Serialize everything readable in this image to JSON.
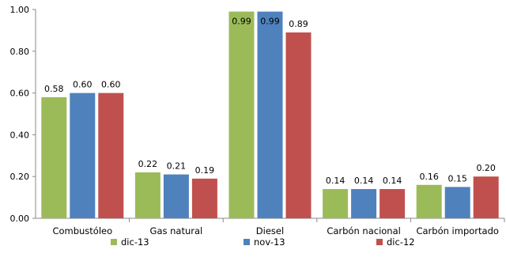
{
  "chart_data": {
    "type": "bar",
    "categories": [
      "Combustóleo",
      "Gas natural",
      "Diesel",
      "Carbón nacional",
      "Carbón importado"
    ],
    "series": [
      {
        "name": "dic-13",
        "color": "#9bbb59",
        "values": [
          0.58,
          0.22,
          0.99,
          0.14,
          0.16
        ],
        "labels": [
          "0.58",
          "0.22",
          "0.99",
          "0.14",
          "0.16"
        ]
      },
      {
        "name": "nov-13",
        "color": "#4f81bd",
        "values": [
          0.6,
          0.21,
          0.99,
          0.14,
          0.15
        ],
        "labels": [
          "0.60",
          "0.21",
          "0.99",
          "0.14",
          "0.15"
        ]
      },
      {
        "name": "dic-12",
        "color": "#c0504d",
        "values": [
          0.6,
          0.19,
          0.89,
          0.14,
          0.2
        ],
        "labels": [
          "0.60",
          "0.19",
          "0.89",
          "0.14",
          "0.20"
        ]
      }
    ],
    "ylim": [
      0,
      1
    ],
    "yticks": [
      "0.00",
      "0.20",
      "0.40",
      "0.60",
      "0.80",
      "1.00"
    ],
    "title": "",
    "xlabel": "",
    "ylabel": "",
    "grid": false,
    "legend_position": "bottom"
  }
}
